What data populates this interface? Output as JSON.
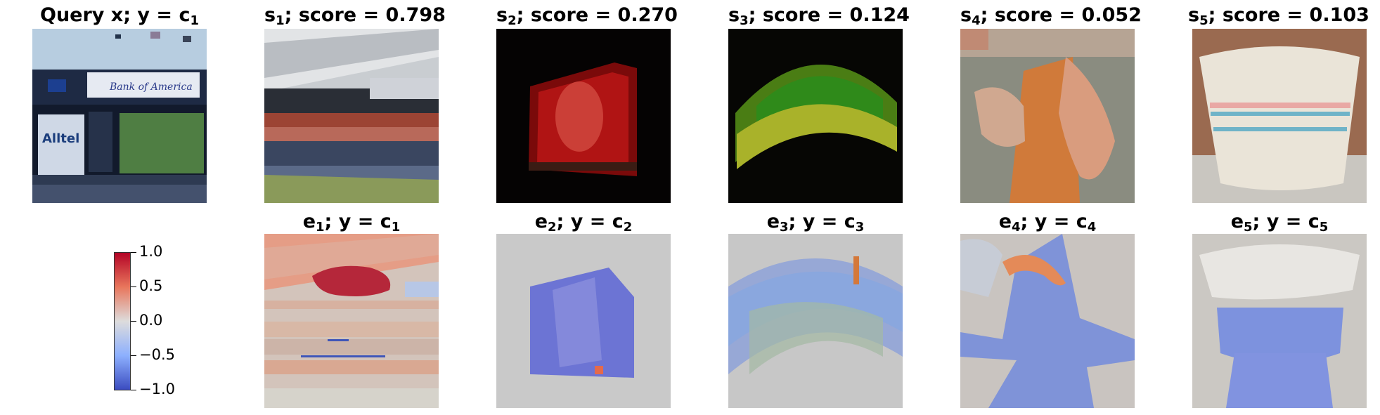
{
  "query": {
    "title_main": "Query x; y = c",
    "title_sub": "1"
  },
  "similar": [
    {
      "label": "s",
      "sub": "1",
      "score_text": "; score = 0.798"
    },
    {
      "label": "s",
      "sub": "2",
      "score_text": "; score = 0.270"
    },
    {
      "label": "s",
      "sub": "3",
      "score_text": "; score = 0.124"
    },
    {
      "label": "s",
      "sub": "4",
      "score_text": "; score = 0.052"
    },
    {
      "label": "s",
      "sub": "5",
      "score_text": "; score = 0.103"
    }
  ],
  "explanations": [
    {
      "label": "e",
      "sub": "1",
      "mid": "; y = c",
      "sub2": "1"
    },
    {
      "label": "e",
      "sub": "2",
      "mid": "; y = c",
      "sub2": "2"
    },
    {
      "label": "e",
      "sub": "3",
      "mid": "; y = c",
      "sub2": "3"
    },
    {
      "label": "e",
      "sub": "4",
      "mid": "; y = c",
      "sub2": "4"
    },
    {
      "label": "e",
      "sub": "5",
      "mid": "; y = c",
      "sub2": "5"
    }
  ],
  "colorbar": {
    "ticks": [
      "1.0",
      "0.5",
      "0.0",
      "−0.5",
      "−1.0"
    ],
    "colors": [
      "#b40426",
      "#e8765c",
      "#dddcdc",
      "#8db0fe",
      "#3b4cc0"
    ]
  },
  "images": {
    "query_sign_text": "Bank of America",
    "query_sign2_text": "Alltel"
  }
}
